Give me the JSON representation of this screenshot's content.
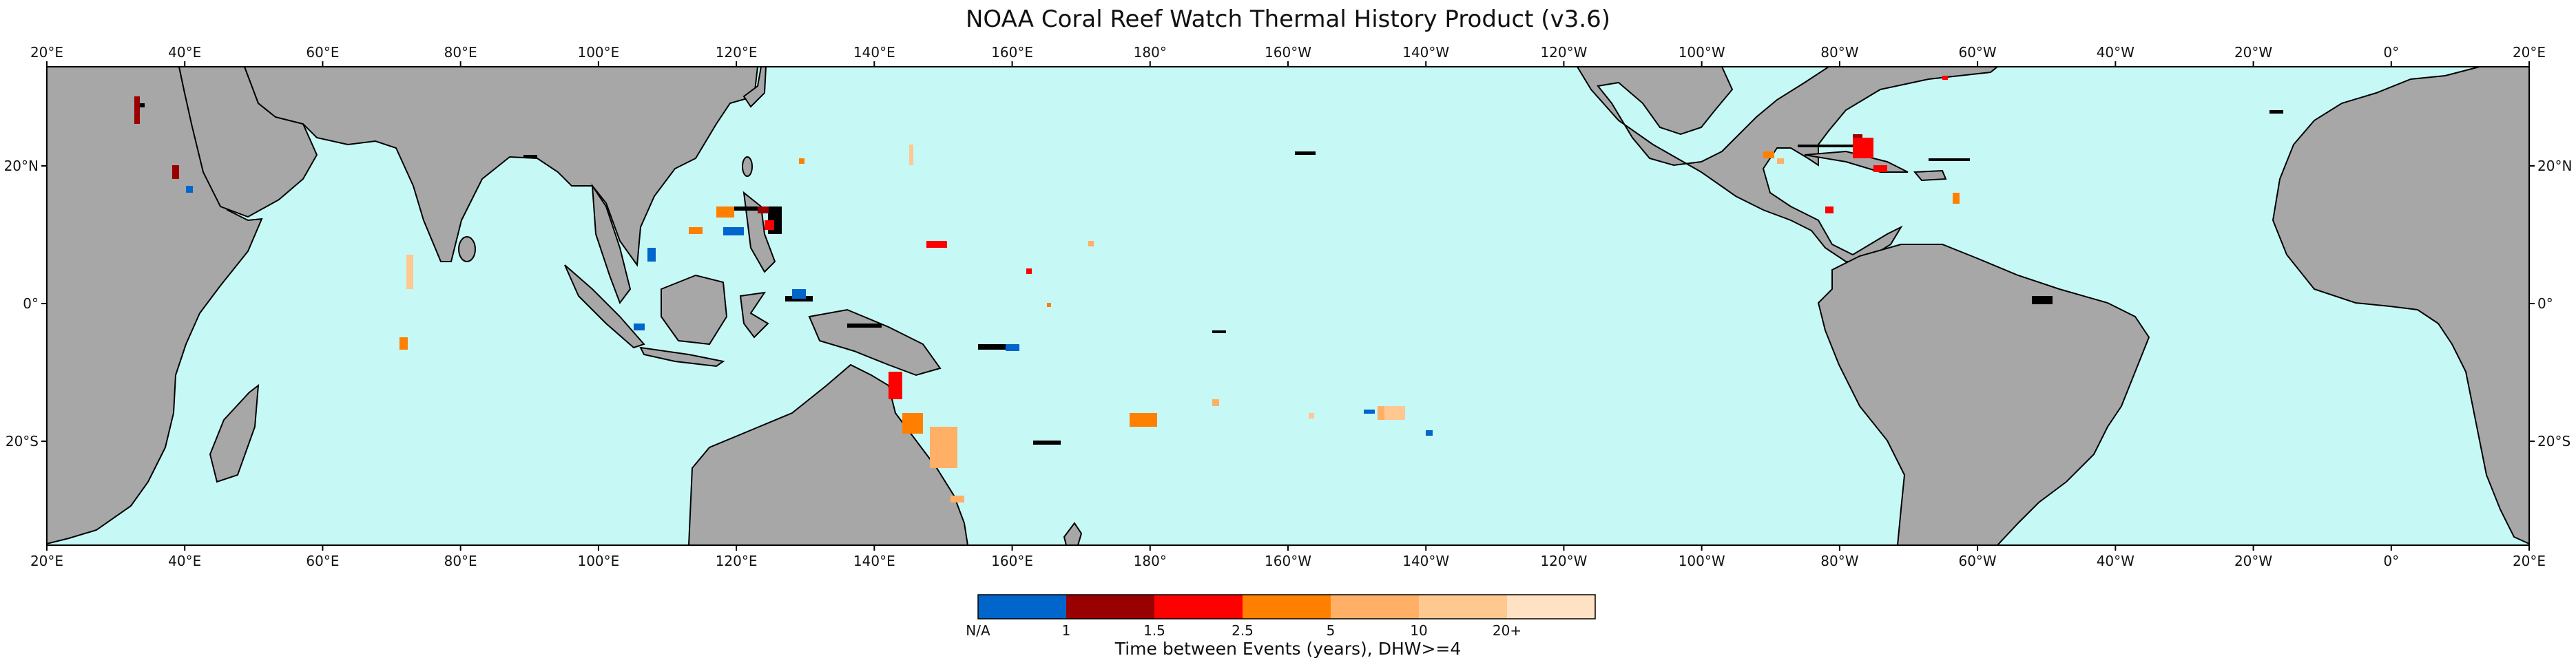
{
  "figure": {
    "title": "NOAA Coral Reef Watch Thermal History Product (v3.6)",
    "ocean_color": "#c6f8f6",
    "land_color": "#a7a7a7",
    "lon_ticks": [
      "20°E",
      "40°E",
      "60°E",
      "80°E",
      "100°E",
      "120°E",
      "140°E",
      "160°E",
      "180°",
      "160°W",
      "140°W",
      "120°W",
      "100°W",
      "80°W",
      "60°W",
      "40°W",
      "20°W",
      "0°",
      "20°E"
    ],
    "lat_ticks": [
      "20°N",
      "0°",
      "20°S"
    ]
  },
  "colorbar": {
    "label": "Time between Events (years), DHW>=4",
    "tick_labels": [
      "N/A",
      "1",
      "1.5",
      "2.5",
      "5",
      "10",
      "20+"
    ],
    "colors": [
      "#0066cc",
      "#990000",
      "#ff0000",
      "#ff8000",
      "#ffb066",
      "#ffc891",
      "#ffe1c4"
    ]
  },
  "legend_categories": [
    "N/A",
    "1–1.5",
    "1.5–2.5",
    "2.5–5",
    "5–10",
    "10–20",
    "20+"
  ]
}
